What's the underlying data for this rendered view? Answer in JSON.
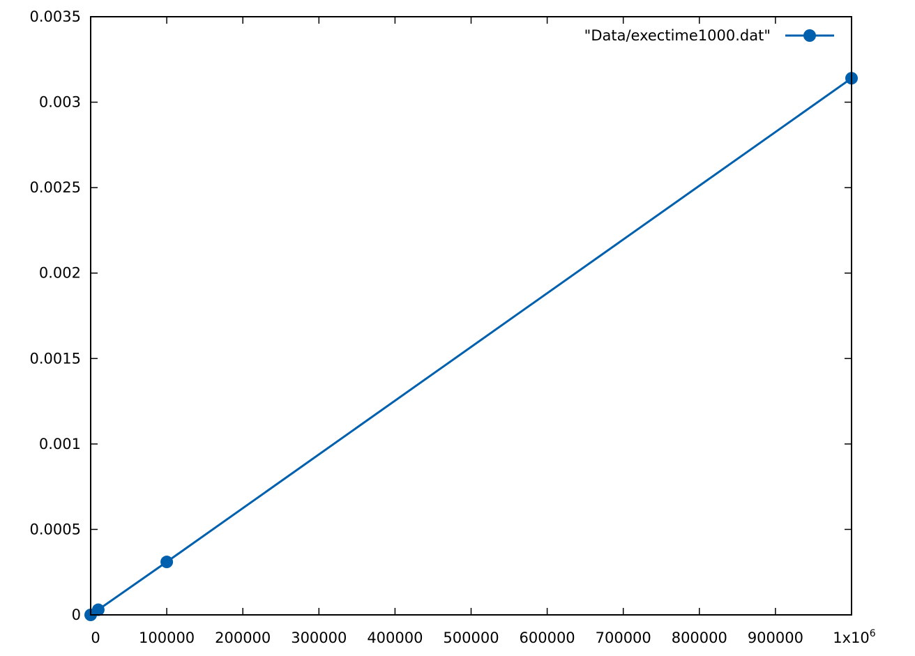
{
  "chart_data": {
    "type": "line",
    "title": "",
    "xlabel": "",
    "ylabel": "",
    "xlim": [
      0,
      1000000
    ],
    "ylim": [
      0,
      0.0035
    ],
    "grid": false,
    "legend_position": "top-right",
    "x_ticks": [
      {
        "value": 0,
        "label": "0"
      },
      {
        "value": 100000,
        "label": "100000"
      },
      {
        "value": 200000,
        "label": "200000"
      },
      {
        "value": 300000,
        "label": "300000"
      },
      {
        "value": 400000,
        "label": "400000"
      },
      {
        "value": 500000,
        "label": "500000"
      },
      {
        "value": 600000,
        "label": "600000"
      },
      {
        "value": 700000,
        "label": "700000"
      },
      {
        "value": 800000,
        "label": "800000"
      },
      {
        "value": 900000,
        "label": "900000"
      }
    ],
    "x_last_tick": {
      "value": 1000000,
      "base": "1x10",
      "exponent": "6"
    },
    "y_ticks": [
      {
        "value": 0,
        "label": "0"
      },
      {
        "value": 0.0005,
        "label": "0.0005"
      },
      {
        "value": 0.001,
        "label": "0.001"
      },
      {
        "value": 0.0015,
        "label": "0.0015"
      },
      {
        "value": 0.002,
        "label": "0.002"
      },
      {
        "value": 0.0025,
        "label": "0.0025"
      },
      {
        "value": 0.003,
        "label": "0.003"
      },
      {
        "value": 0.0035,
        "label": "0.0035"
      }
    ],
    "series": [
      {
        "name": "\"Data/exectime1000.dat\"",
        "color": "#0060ad",
        "marker": "circle",
        "points": [
          {
            "x": 0,
            "y": 0
          },
          {
            "x": 10000,
            "y": 3e-05
          },
          {
            "x": 100000,
            "y": 0.00031
          },
          {
            "x": 1000000,
            "y": 0.00314
          }
        ]
      }
    ]
  }
}
